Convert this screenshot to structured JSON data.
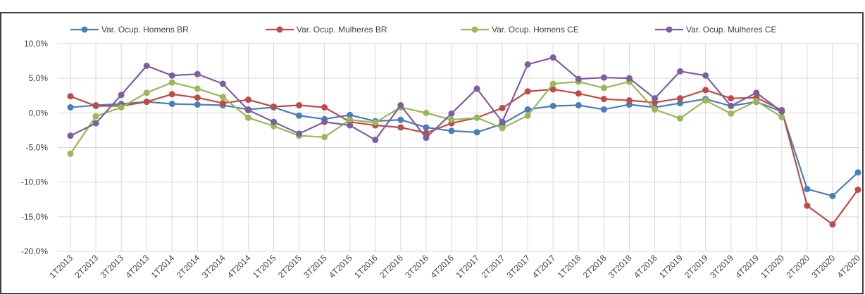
{
  "chart_data": {
    "type": "line",
    "categories": [
      "1T2013",
      "2T2013",
      "3T2013",
      "4T2013",
      "1T2014",
      "2T2014",
      "3T2014",
      "4T2014",
      "1T2015",
      "2T2015",
      "3T2015",
      "4T2015",
      "1T2016",
      "2T2016",
      "3T2016",
      "4T2016",
      "1T2017",
      "2T2017",
      "3T2017",
      "4T2017",
      "1T2018",
      "2T2018",
      "3T2018",
      "4T2018",
      "1T2019",
      "2T2019",
      "3T2019",
      "4T2019",
      "1T2020",
      "2T2020",
      "3T2020",
      "4T2020"
    ],
    "series": [
      {
        "name": "Var. Ocup. Homens BR",
        "color": "#4a7ebb",
        "values": [
          0.8,
          1.1,
          1.3,
          1.6,
          1.3,
          1.2,
          1.1,
          0.5,
          0.8,
          -0.4,
          -0.9,
          -0.3,
          -1.2,
          -1.0,
          -2.1,
          -2.6,
          -2.8,
          -1.6,
          0.5,
          1.0,
          1.1,
          0.5,
          1.2,
          0.8,
          1.4,
          2.0,
          1.0,
          1.6,
          0.2,
          -11.0,
          -12.0,
          -8.6
        ]
      },
      {
        "name": "Var. Ocup. Mulheres BR",
        "color": "#be4b48",
        "values": [
          2.4,
          1.0,
          1.0,
          1.6,
          2.7,
          2.2,
          1.4,
          1.9,
          0.9,
          1.1,
          0.8,
          -1.3,
          -1.8,
          -2.1,
          -2.9,
          -1.5,
          -0.7,
          0.7,
          3.1,
          3.4,
          2.8,
          2.0,
          1.8,
          1.5,
          2.1,
          3.3,
          2.1,
          2.2,
          0.4,
          -13.4,
          -16.1,
          -11.1
        ]
      },
      {
        "name": "Var. Ocup. Homens CE",
        "color": "#98b954",
        "values": [
          -5.9,
          -0.5,
          0.8,
          2.9,
          4.4,
          3.5,
          2.3,
          -0.7,
          -1.9,
          -3.3,
          -3.5,
          -1.0,
          -1.4,
          0.8,
          0.0,
          -1.0,
          -0.7,
          -2.2,
          -0.4,
          4.2,
          4.5,
          3.6,
          4.5,
          0.5,
          -0.8,
          1.8,
          -0.1,
          1.7,
          -0.6,
          null,
          null,
          null
        ]
      },
      {
        "name": "Var. Ocup. Mulheres CE",
        "color": "#7d5fa0",
        "values": [
          -3.3,
          -1.5,
          2.6,
          6.8,
          5.4,
          5.6,
          4.2,
          0.4,
          -1.3,
          -3.0,
          -1.3,
          -1.8,
          -3.9,
          1.1,
          -3.6,
          -0.1,
          3.5,
          -1.3,
          7.0,
          8.0,
          4.9,
          5.1,
          5.0,
          2.1,
          6.0,
          5.4,
          1.0,
          2.9,
          0.2,
          null,
          null,
          null
        ]
      }
    ],
    "ylim": [
      -20,
      10
    ],
    "yticks": [
      {
        "value": -20,
        "label": "-20,0%"
      },
      {
        "value": -15,
        "label": "-15,0%"
      },
      {
        "value": -10,
        "label": "-10,0%"
      },
      {
        "value": -5,
        "label": "-5,0%"
      },
      {
        "value": 0,
        "label": "0,0%"
      },
      {
        "value": 5,
        "label": "5,0%"
      },
      {
        "value": 10,
        "label": "10,0%"
      }
    ],
    "grid": true
  }
}
